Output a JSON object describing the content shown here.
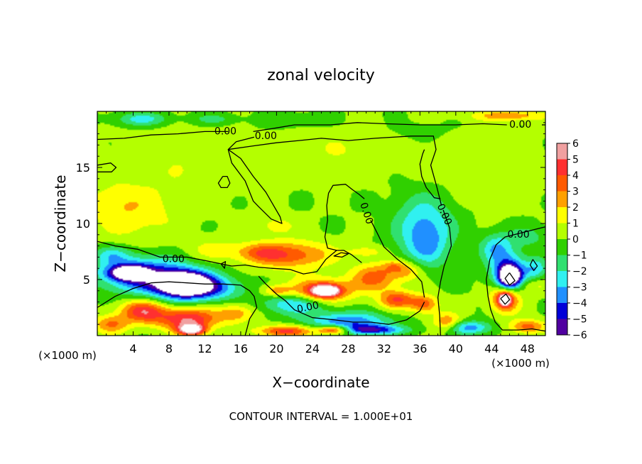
{
  "chart_data": {
    "type": "heatmap",
    "title": "zonal velocity",
    "xlabel": "X−coordinate",
    "ylabel": "Z−coordinate",
    "x_unit_left": "(×1000 m)",
    "x_unit_right": "(×1000 m)",
    "footer": "CONTOUR INTERVAL = 1.000E+01",
    "xlim": [
      0,
      50
    ],
    "ylim": [
      0,
      20
    ],
    "x_ticks": [
      4,
      8,
      12,
      16,
      20,
      24,
      28,
      32,
      36,
      40,
      44,
      48
    ],
    "x_tick_labels": [
      "4",
      "8",
      "12",
      "16",
      "20",
      "24",
      "28",
      "32",
      "36",
      "40",
      "44",
      "48"
    ],
    "y_ticks": [
      5,
      10,
      15
    ],
    "y_tick_labels": [
      "5",
      "10",
      "15"
    ],
    "colorbar": {
      "min": -6,
      "max": 6,
      "ticks": [
        6,
        5,
        4,
        3,
        2,
        1,
        0,
        -1,
        -2,
        -3,
        -4,
        -5,
        -6
      ],
      "tick_labels": [
        "6",
        "5",
        "4",
        "3",
        "2",
        "1",
        "0",
        "−1",
        "−2",
        "−3",
        "−4",
        "−5",
        "−6"
      ],
      "colors": [
        "#f0a0a0",
        "#ff3030",
        "#ff5a00",
        "#ffa000",
        "#ffff00",
        "#b4ff00",
        "#30d000",
        "#30e070",
        "#30f0f0",
        "#2090ff",
        "#0000d8",
        "#5000a0"
      ]
    },
    "contour_labels": [
      {
        "text": "0.00",
        "x": 14.3,
        "y": 18.2,
        "angle": 0
      },
      {
        "text": "0.00",
        "x": 18.8,
        "y": 17.8,
        "angle": 0
      },
      {
        "text": "0.00",
        "x": 47.2,
        "y": 18.8,
        "angle": 0
      },
      {
        "text": "0.00",
        "x": 30.0,
        "y": 10.9,
        "angle": 72
      },
      {
        "text": "0.00",
        "x": 38.7,
        "y": 10.8,
        "angle": 66
      },
      {
        "text": "0.00",
        "x": 47.0,
        "y": 9.0,
        "angle": 0
      },
      {
        "text": "0.00",
        "x": 8.5,
        "y": 6.8,
        "angle": 0
      },
      {
        "text": "0.00",
        "x": 23.5,
        "y": 2.5,
        "angle": -12
      }
    ],
    "contours": [
      [
        [
          0,
          17.5
        ],
        [
          3,
          17.6
        ],
        [
          6,
          17.9
        ],
        [
          9,
          18.0
        ],
        [
          12,
          18.2
        ],
        [
          14.6,
          18.2
        ]
      ],
      [
        [
          17.4,
          18.2
        ],
        [
          19.8,
          18.5
        ],
        [
          22,
          18.8
        ],
        [
          26,
          18.8
        ],
        [
          29,
          19.0
        ],
        [
          32,
          18.9
        ],
        [
          36,
          18.8
        ],
        [
          40,
          18.8
        ],
        [
          43,
          18.9
        ],
        [
          45.7,
          18.8
        ]
      ],
      [
        [
          49.6,
          18.8
        ],
        [
          50,
          18.8
        ]
      ],
      [
        [
          17.5,
          17.7
        ],
        [
          15.5,
          17.3
        ],
        [
          14.6,
          16.6
        ],
        [
          17.2,
          16.9
        ],
        [
          20,
          17.2
        ],
        [
          22.5,
          17.4
        ],
        [
          25,
          17.6
        ],
        [
          28,
          17.4
        ],
        [
          31,
          17.6
        ],
        [
          35,
          17.8
        ],
        [
          37.5,
          17.8
        ],
        [
          37.8,
          16.6
        ],
        [
          37.2,
          15.2
        ],
        [
          37.9,
          13.2
        ],
        [
          38.4,
          11.6
        ]
      ],
      [
        [
          38.6,
          11.2
        ],
        [
          39.3,
          9.6
        ],
        [
          39.5,
          8.0
        ],
        [
          38.7,
          6.2
        ],
        [
          38.3,
          4.8
        ],
        [
          38.0,
          3.4
        ],
        [
          38.2,
          1.8
        ],
        [
          38.3,
          0
        ]
      ],
      [
        [
          38.3,
          12.2
        ],
        [
          37.6,
          12.3
        ],
        [
          36.7,
          13.2
        ],
        [
          36.2,
          14.2
        ],
        [
          36.0,
          15.3
        ],
        [
          36.3,
          16.2
        ],
        [
          36.5,
          16.6
        ]
      ],
      [
        [
          29.8,
          12.2
        ],
        [
          29.2,
          12.6
        ],
        [
          28.5,
          13.0
        ],
        [
          27.7,
          13.5
        ],
        [
          26.3,
          13.4
        ],
        [
          25.8,
          12.7
        ],
        [
          25.6,
          11.6
        ],
        [
          25.7,
          10.3
        ],
        [
          25.4,
          8.8
        ],
        [
          25.7,
          7.8
        ],
        [
          26.7,
          7.6
        ]
      ],
      [
        [
          30.5,
          10.3
        ],
        [
          31.2,
          9.2
        ],
        [
          32,
          7.9
        ],
        [
          33.5,
          6.8
        ],
        [
          35,
          5.9
        ],
        [
          36.2,
          4.8
        ],
        [
          36.5,
          3.4
        ]
      ],
      [
        [
          14.6,
          16.6
        ],
        [
          16,
          15.8
        ],
        [
          17.4,
          14.2
        ],
        [
          18.8,
          12.8
        ],
        [
          20.4,
          10.6
        ],
        [
          20.6,
          10.0
        ],
        [
          19.4,
          10.4
        ],
        [
          18.0,
          11.5
        ],
        [
          17.4,
          12.0
        ],
        [
          16.5,
          13.8
        ],
        [
          15.0,
          15.4
        ],
        [
          14.6,
          16.6
        ]
      ],
      [
        [
          14.0,
          14.2
        ],
        [
          13.5,
          13.6
        ],
        [
          13.8,
          13.2
        ],
        [
          14.5,
          13.2
        ],
        [
          14.8,
          13.6
        ],
        [
          14.5,
          14.2
        ],
        [
          14.0,
          14.2
        ]
      ],
      [
        [
          0,
          15.2
        ],
        [
          1.5,
          15.4
        ],
        [
          2.1,
          15.0
        ],
        [
          1.6,
          14.6
        ],
        [
          0,
          14.6
        ]
      ],
      [
        [
          0,
          8.4
        ],
        [
          2,
          8.0
        ],
        [
          4.5,
          7.7
        ],
        [
          7,
          7.0
        ],
        [
          10,
          7.0
        ],
        [
          12,
          6.7
        ],
        [
          13.8,
          6.4
        ],
        [
          15,
          6.2
        ],
        [
          16.5,
          6.3
        ],
        [
          18,
          6.1
        ],
        [
          19.5,
          6.0
        ],
        [
          21.5,
          5.9
        ],
        [
          23,
          5.5
        ],
        [
          24.5,
          5.7
        ],
        [
          25.5,
          6.8
        ],
        [
          26.7,
          7.6
        ],
        [
          27.5,
          7.6
        ],
        [
          28.4,
          7.2
        ],
        [
          29.5,
          6.5
        ]
      ],
      [
        [
          0,
          2.5
        ],
        [
          2,
          3.5
        ],
        [
          4,
          4.2
        ],
        [
          6,
          4.7
        ],
        [
          8,
          4.8
        ],
        [
          10,
          4.7
        ],
        [
          12,
          4.6
        ],
        [
          14,
          4.6
        ],
        [
          16,
          4.5
        ],
        [
          17,
          4.0
        ],
        [
          17.5,
          3.5
        ],
        [
          17.8,
          2.5
        ],
        [
          17.0,
          1.5
        ],
        [
          16.5,
          0
        ]
      ],
      [
        [
          18.0,
          5.3
        ],
        [
          18.8,
          4.6
        ],
        [
          20,
          3.7
        ],
        [
          21,
          3.1
        ],
        [
          22,
          2.3
        ],
        [
          24,
          1.6
        ],
        [
          26.5,
          1.4
        ],
        [
          28.5,
          1.2
        ],
        [
          30.5,
          1.2
        ],
        [
          32.5,
          1.0
        ],
        [
          34.5,
          1.4
        ],
        [
          36,
          2.2
        ],
        [
          36.5,
          3.0
        ]
      ],
      [
        [
          50,
          9.7
        ],
        [
          49.5,
          9.6
        ],
        [
          47.5,
          9.2
        ],
        [
          45.5,
          8.8
        ],
        [
          44.5,
          8.1
        ],
        [
          43.8,
          6.8
        ],
        [
          43.4,
          5.0
        ],
        [
          43.6,
          3.5
        ],
        [
          43.9,
          2.3
        ],
        [
          44.4,
          1.2
        ],
        [
          45.2,
          0.5
        ],
        [
          47,
          0.5
        ],
        [
          48.5,
          0.6
        ],
        [
          50,
          0.4
        ]
      ],
      [
        [
          48.6,
          6.8
        ],
        [
          48.3,
          6.3
        ],
        [
          48.7,
          5.8
        ],
        [
          49.1,
          6.2
        ],
        [
          48.6,
          6.8
        ]
      ],
      [
        [
          46.0,
          5.6
        ],
        [
          45.5,
          5.1
        ],
        [
          46.0,
          4.5
        ],
        [
          46.6,
          4.9
        ],
        [
          46.0,
          5.6
        ]
      ],
      [
        [
          45.0,
          3.3
        ],
        [
          45.5,
          2.8
        ],
        [
          46.0,
          3.2
        ],
        [
          45.6,
          3.7
        ],
        [
          45.0,
          3.3
        ]
      ],
      [
        [
          27.2,
          7.4
        ],
        [
          26.4,
          7.1
        ],
        [
          27.3,
          7.0
        ],
        [
          28.0,
          7.3
        ],
        [
          27.2,
          7.4
        ]
      ],
      [
        [
          13.8,
          6.4
        ],
        [
          14.3,
          6.6
        ],
        [
          14.2,
          6.0
        ],
        [
          13.8,
          6.4
        ]
      ]
    ],
    "field_blobs": [
      {
        "x": 25,
        "y": 10,
        "rx": 60,
        "ry": 20,
        "v": 0.05
      },
      {
        "x": 4,
        "y": 10.8,
        "rx": 5,
        "ry": 2.5,
        "v": 1.5
      },
      {
        "x": 2,
        "y": 12.0,
        "rx": 3,
        "ry": 1.5,
        "v": 0.8
      },
      {
        "x": 10,
        "y": 15.5,
        "rx": 8,
        "ry": 3,
        "v": 0.8
      },
      {
        "x": 28,
        "y": 16.5,
        "rx": 6,
        "ry": 2,
        "v": 0.9
      },
      {
        "x": 42,
        "y": 15.0,
        "rx": 7,
        "ry": 3,
        "v": 0.7
      },
      {
        "x": 20,
        "y": 9.8,
        "rx": 2,
        "ry": 0.8,
        "v": 1.5
      },
      {
        "x": 5,
        "y": 19.3,
        "rx": 3,
        "ry": 0.6,
        "v": -2.5
      },
      {
        "x": 13,
        "y": 19.3,
        "rx": 2.5,
        "ry": 0.5,
        "v": -1.5
      },
      {
        "x": 22,
        "y": 19.2,
        "rx": 4,
        "ry": 0.6,
        "v": -1.0
      },
      {
        "x": 36,
        "y": 18.2,
        "rx": 3,
        "ry": 0.8,
        "v": -0.7
      },
      {
        "x": 46,
        "y": 19.6,
        "rx": 4,
        "ry": 0.45,
        "v": 2.8
      },
      {
        "x": 48,
        "y": 8.8,
        "rx": 2.5,
        "ry": 1.0,
        "v": -1.4
      },
      {
        "x": 36.5,
        "y": 9.6,
        "rx": 3.2,
        "ry": 3.0,
        "v": -3.3
      },
      {
        "x": 36.8,
        "y": 7.8,
        "rx": 2.2,
        "ry": 1.8,
        "v": -1.3
      },
      {
        "x": 21.5,
        "y": 7.2,
        "rx": 4.5,
        "ry": 1.2,
        "v": 3.7
      },
      {
        "x": 18,
        "y": 7.4,
        "rx": 2.5,
        "ry": 0.8,
        "v": 2.0
      },
      {
        "x": 13,
        "y": 7.6,
        "rx": 3,
        "ry": 1.0,
        "v": 1.3
      },
      {
        "x": 4.5,
        "y": 5.5,
        "rx": 4.5,
        "ry": 1.6,
        "v": -4.5
      },
      {
        "x": 3.5,
        "y": 5.6,
        "rx": 2.0,
        "ry": 0.6,
        "v": -6.8
      },
      {
        "x": 9.5,
        "y": 4.6,
        "rx": 4,
        "ry": 1.5,
        "v": -5.0
      },
      {
        "x": 9.8,
        "y": 4.6,
        "rx": 2.4,
        "ry": 0.9,
        "v": -7.2
      },
      {
        "x": 13,
        "y": 4.2,
        "rx": 3.5,
        "ry": 1.0,
        "v": -2.5
      },
      {
        "x": 1.5,
        "y": 7.2,
        "rx": 2,
        "ry": 0.8,
        "v": -2.0
      },
      {
        "x": 5,
        "y": 2.2,
        "rx": 2.5,
        "ry": 1.0,
        "v": 4.5
      },
      {
        "x": 10,
        "y": 1.5,
        "rx": 3.5,
        "ry": 1.0,
        "v": 5.0
      },
      {
        "x": 10.5,
        "y": 0.5,
        "rx": 1.5,
        "ry": 0.5,
        "v": 6.8
      },
      {
        "x": 15.5,
        "y": 2.0,
        "rx": 2,
        "ry": 0.8,
        "v": 2.5
      },
      {
        "x": 1.5,
        "y": 1.0,
        "rx": 2,
        "ry": 0.8,
        "v": 3.0
      },
      {
        "x": 25,
        "y": 4.0,
        "rx": 3.5,
        "ry": 1.1,
        "v": 4.0
      },
      {
        "x": 25.5,
        "y": 4.0,
        "rx": 1.5,
        "ry": 0.5,
        "v": 7.0
      },
      {
        "x": 31,
        "y": 5.2,
        "rx": 2.5,
        "ry": 1.2,
        "v": 3.5
      },
      {
        "x": 34.5,
        "y": 5.8,
        "rx": 1.8,
        "ry": 0.9,
        "v": 2.5
      },
      {
        "x": 33.5,
        "y": 3.2,
        "rx": 2.0,
        "ry": 0.8,
        "v": 4.0
      },
      {
        "x": 36.5,
        "y": 2.8,
        "rx": 1.5,
        "ry": 0.8,
        "v": 3.5
      },
      {
        "x": 30,
        "y": 7.5,
        "rx": 2,
        "ry": 0.5,
        "v": 1.5
      },
      {
        "x": 22,
        "y": 2.8,
        "rx": 3.5,
        "ry": 0.9,
        "v": -3.2
      },
      {
        "x": 20,
        "y": 4.0,
        "rx": 1.5,
        "ry": 0.5,
        "v": 2.5
      },
      {
        "x": 28,
        "y": 1.2,
        "rx": 4.5,
        "ry": 0.9,
        "v": -4.0
      },
      {
        "x": 30,
        "y": 0.5,
        "rx": 4,
        "ry": 0.4,
        "v": -4.5
      },
      {
        "x": 21,
        "y": 0.4,
        "rx": 3,
        "ry": 0.5,
        "v": 4.5
      },
      {
        "x": 26.5,
        "y": 0.5,
        "rx": 2.0,
        "ry": 0.4,
        "v": 6.8
      },
      {
        "x": 33,
        "y": 6.2,
        "rx": 1.2,
        "ry": 0.5,
        "v": 1.5
      },
      {
        "x": 46,
        "y": 5.6,
        "rx": 2.0,
        "ry": 1.6,
        "v": -5.0
      },
      {
        "x": 46,
        "y": 5.2,
        "rx": 1.1,
        "ry": 0.9,
        "v": -7.2
      },
      {
        "x": 45.5,
        "y": 3.3,
        "rx": 1.6,
        "ry": 1.2,
        "v": 4.8
      },
      {
        "x": 45.5,
        "y": 3.2,
        "rx": 0.6,
        "ry": 0.5,
        "v": 6.8
      },
      {
        "x": 49,
        "y": 6.0,
        "rx": 1.2,
        "ry": 1.0,
        "v": -2.5
      },
      {
        "x": 48.5,
        "y": 4.5,
        "rx": 2,
        "ry": 0.7,
        "v": 1.5
      },
      {
        "x": 48,
        "y": 0.8,
        "rx": 2,
        "ry": 0.6,
        "v": 3.5
      },
      {
        "x": 41.5,
        "y": 0.7,
        "rx": 2.5,
        "ry": 0.6,
        "v": -3.5
      },
      {
        "x": 39,
        "y": 1.2,
        "rx": 1.5,
        "ry": 0.8,
        "v": 3.0
      },
      {
        "x": 44.5,
        "y": 7.8,
        "rx": 1.8,
        "ry": 1.3,
        "v": -2.8
      }
    ]
  }
}
